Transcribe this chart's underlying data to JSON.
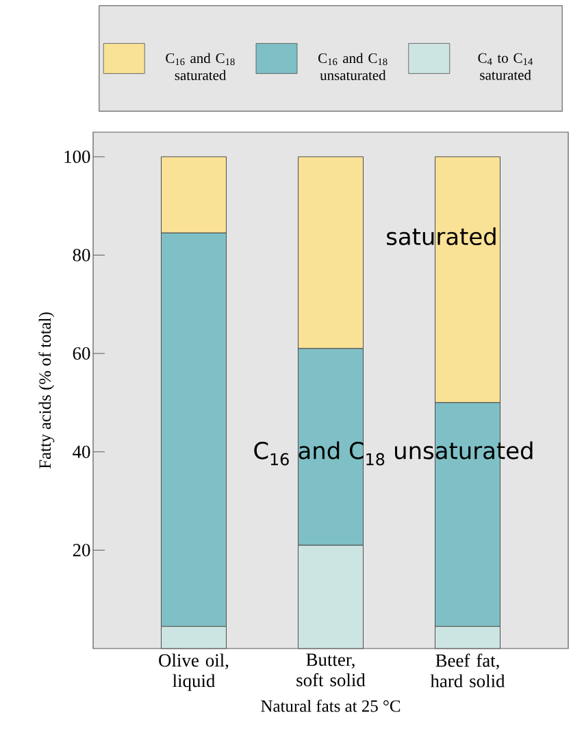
{
  "chart_data": {
    "type": "bar",
    "stacked": true,
    "xlabel": "Natural fats at 25 °C",
    "ylabel": "Fatty acids (% of total)",
    "categories": [
      "Olive oil, liquid",
      "Butter, soft solid",
      "Beef fat, hard solid"
    ],
    "series": [
      {
        "name": "C$_{4}$ to C$_{14}$ saturated",
        "color": "#cde5e2",
        "values": [
          4.5,
          21,
          4.5
        ]
      },
      {
        "name": "C$_{16}$ and C$_{18}$ unsaturated",
        "color": "#7fc0c6",
        "values": [
          80,
          40,
          45.5
        ]
      },
      {
        "name": "C$_{16}$ and C$_{18}$ saturated",
        "color": "#f9e196",
        "values": [
          15.5,
          39,
          50
        ]
      }
    ],
    "ylim": [
      0,
      105
    ],
    "yticks": [
      20,
      40,
      60,
      80,
      100
    ],
    "legend": "top",
    "annotations": [
      "saturated",
      "C$_{16}$ and C$_{18}$ unsaturated"
    ]
  }
}
